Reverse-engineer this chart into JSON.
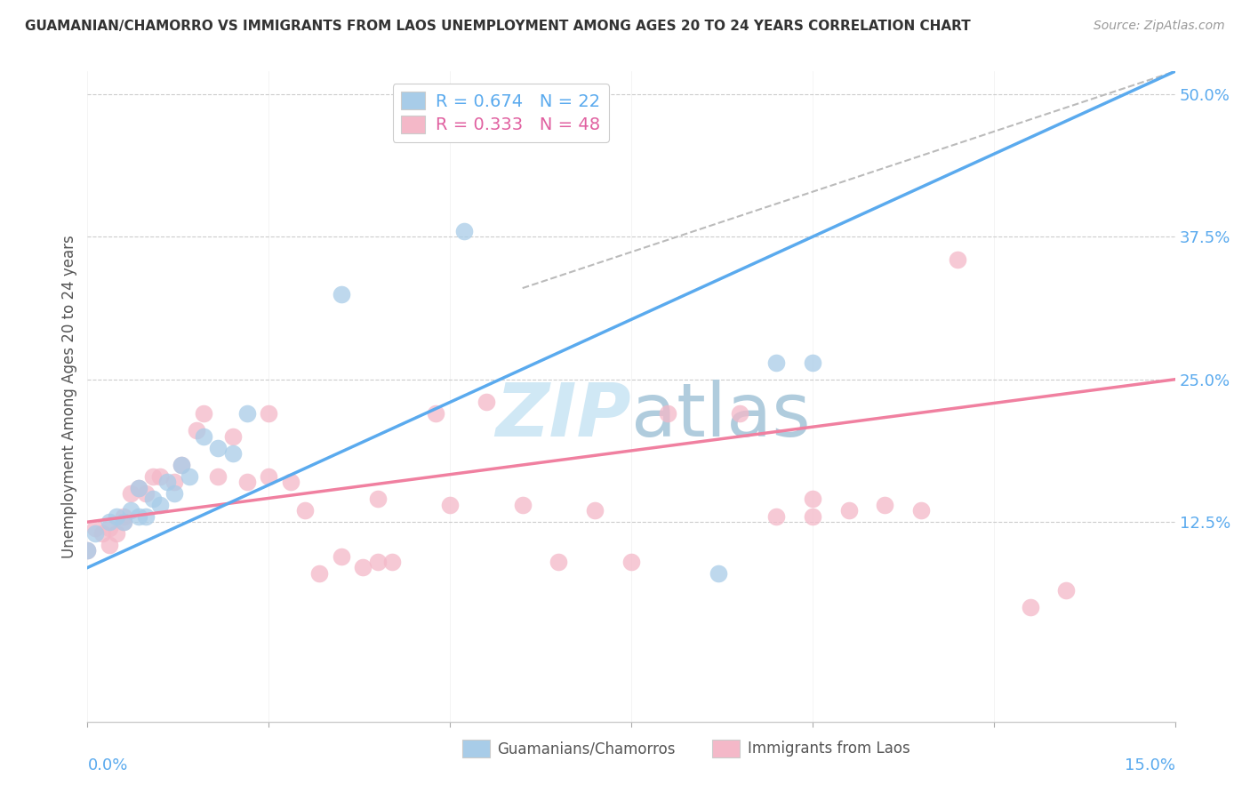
{
  "title": "GUAMANIAN/CHAMORRO VS IMMIGRANTS FROM LAOS UNEMPLOYMENT AMONG AGES 20 TO 24 YEARS CORRELATION CHART",
  "source": "Source: ZipAtlas.com",
  "ylabel_label": "Unemployment Among Ages 20 to 24 years",
  "xmin": 0.0,
  "xmax": 0.15,
  "ymin": -0.05,
  "ymax": 0.52,
  "color_blue": "#a8cce8",
  "color_pink": "#f4b8c8",
  "color_blue_line": "#5aaaee",
  "color_pink_line": "#f080a0",
  "color_grey_line": "#bbbbbb",
  "watermark_color": "#d0e8f5",
  "legend_label1": "Guamanians/Chamorros",
  "legend_label2": "Immigrants from Laos",
  "blue_points_x": [
    0.0,
    0.001,
    0.003,
    0.004,
    0.005,
    0.006,
    0.007,
    0.007,
    0.008,
    0.009,
    0.01,
    0.011,
    0.012,
    0.013,
    0.014,
    0.016,
    0.018,
    0.02,
    0.022,
    0.035,
    0.052,
    0.087,
    0.095,
    0.1
  ],
  "blue_points_y": [
    0.1,
    0.115,
    0.125,
    0.13,
    0.125,
    0.135,
    0.13,
    0.155,
    0.13,
    0.145,
    0.14,
    0.16,
    0.15,
    0.175,
    0.165,
    0.2,
    0.19,
    0.185,
    0.22,
    0.325,
    0.38,
    0.08,
    0.265,
    0.265
  ],
  "pink_points_x": [
    0.0,
    0.001,
    0.002,
    0.003,
    0.003,
    0.004,
    0.005,
    0.005,
    0.006,
    0.007,
    0.008,
    0.009,
    0.01,
    0.012,
    0.013,
    0.015,
    0.016,
    0.018,
    0.02,
    0.022,
    0.025,
    0.025,
    0.028,
    0.03,
    0.032,
    0.035,
    0.038,
    0.04,
    0.04,
    0.042,
    0.048,
    0.05,
    0.055,
    0.06,
    0.065,
    0.07,
    0.075,
    0.08,
    0.09,
    0.095,
    0.1,
    0.1,
    0.105,
    0.11,
    0.115,
    0.12,
    0.13,
    0.135
  ],
  "pink_points_y": [
    0.1,
    0.12,
    0.115,
    0.12,
    0.105,
    0.115,
    0.125,
    0.13,
    0.15,
    0.155,
    0.15,
    0.165,
    0.165,
    0.16,
    0.175,
    0.205,
    0.22,
    0.165,
    0.2,
    0.16,
    0.22,
    0.165,
    0.16,
    0.135,
    0.08,
    0.095,
    0.085,
    0.09,
    0.145,
    0.09,
    0.22,
    0.14,
    0.23,
    0.14,
    0.09,
    0.135,
    0.09,
    0.22,
    0.22,
    0.13,
    0.13,
    0.145,
    0.135,
    0.14,
    0.135,
    0.355,
    0.05,
    0.065
  ],
  "blue_line_x": [
    0.0,
    0.15
  ],
  "blue_line_y": [
    0.085,
    0.52
  ],
  "pink_line_x": [
    0.0,
    0.15
  ],
  "pink_line_y": [
    0.125,
    0.25
  ],
  "grey_line_x": [
    0.06,
    0.15
  ],
  "grey_line_y": [
    0.33,
    0.52
  ],
  "ytick_positions": [
    0.125,
    0.25,
    0.375,
    0.5
  ],
  "ytick_labels": [
    "12.5%",
    "25.0%",
    "37.5%",
    "50.0%"
  ],
  "xtick_positions": [
    0.0,
    0.025,
    0.05,
    0.075,
    0.1,
    0.125,
    0.15
  ]
}
